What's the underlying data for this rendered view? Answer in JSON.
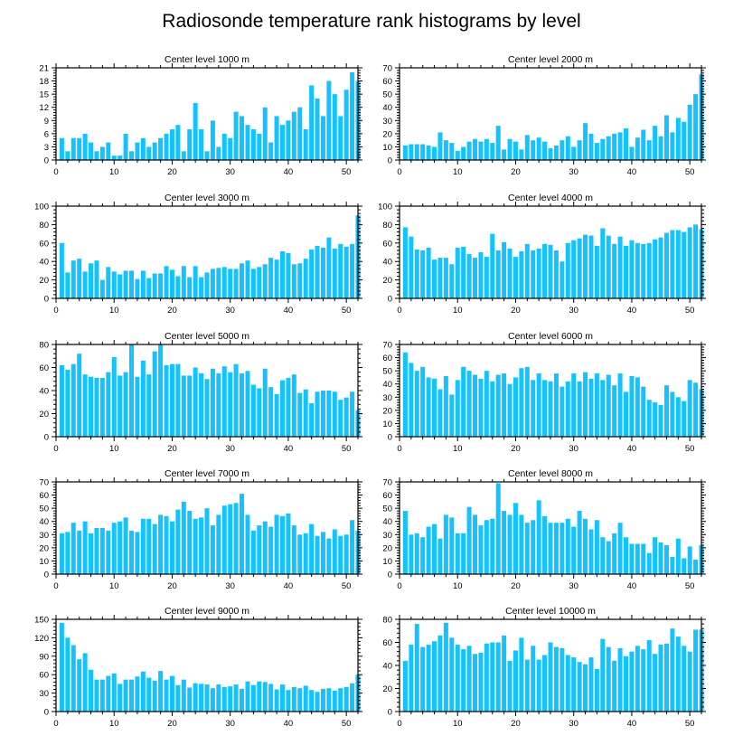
{
  "colors": {
    "bar": "#14c2ff",
    "frame": "#000000"
  },
  "figure": {
    "title": "Radiosonde temperature rank histograms by level"
  },
  "chart_data": [
    {
      "type": "bar",
      "title": "Center level 1000 m",
      "xlim": [
        0,
        52
      ],
      "ylim": [
        0,
        21
      ],
      "xticks": [
        0,
        10,
        20,
        30,
        40,
        50
      ],
      "yticks": [
        0,
        3,
        6,
        9,
        12,
        15,
        18,
        21
      ],
      "values": [
        5,
        2,
        5,
        5,
        6,
        4,
        2,
        3,
        4,
        1,
        1,
        6,
        2,
        4,
        5,
        3,
        4,
        5,
        6,
        7,
        8,
        2,
        7,
        13,
        7,
        2,
        9,
        3,
        6,
        5,
        11,
        10,
        8,
        7,
        6,
        12,
        4,
        10,
        8,
        9,
        11,
        12,
        7,
        17,
        14,
        10,
        18,
        15,
        10,
        16,
        20,
        18
      ]
    },
    {
      "type": "bar",
      "title": "Center level 2000 m",
      "xlim": [
        0,
        52
      ],
      "ylim": [
        0,
        70
      ],
      "xticks": [
        0,
        10,
        20,
        30,
        40,
        50
      ],
      "yticks": [
        0,
        10,
        20,
        30,
        40,
        50,
        60,
        70
      ],
      "values": [
        11,
        12,
        12,
        12,
        11,
        10,
        21,
        15,
        13,
        7,
        10,
        14,
        16,
        14,
        16,
        13,
        26,
        8,
        16,
        14,
        8,
        19,
        15,
        17,
        14,
        9,
        11,
        15,
        18,
        10,
        15,
        28,
        20,
        13,
        16,
        18,
        20,
        21,
        24,
        10,
        17,
        23,
        15,
        26,
        18,
        34,
        21,
        32,
        29,
        42,
        50,
        65
      ]
    },
    {
      "type": "bar",
      "title": "Center level 3000 m",
      "xlim": [
        0,
        52
      ],
      "ylim": [
        0,
        100
      ],
      "xticks": [
        0,
        10,
        20,
        30,
        40,
        50
      ],
      "yticks": [
        0,
        20,
        40,
        60,
        80,
        100
      ],
      "values": [
        60,
        28,
        41,
        43,
        29,
        38,
        41,
        20,
        34,
        29,
        26,
        30,
        30,
        21,
        30,
        22,
        27,
        27,
        35,
        31,
        24,
        35,
        23,
        35,
        23,
        28,
        32,
        33,
        34,
        32,
        32,
        38,
        41,
        32,
        34,
        37,
        44,
        42,
        51,
        49,
        37,
        38,
        43,
        53,
        57,
        55,
        66,
        54,
        59,
        56,
        59,
        90
      ]
    },
    {
      "type": "bar",
      "title": "Center level 4000 m",
      "xlim": [
        0,
        52
      ],
      "ylim": [
        0,
        100
      ],
      "xticks": [
        0,
        10,
        20,
        30,
        40,
        50
      ],
      "yticks": [
        0,
        20,
        40,
        60,
        80,
        100
      ],
      "values": [
        77,
        67,
        53,
        52,
        55,
        42,
        44,
        44,
        37,
        55,
        56,
        48,
        44,
        50,
        45,
        70,
        52,
        61,
        54,
        45,
        51,
        59,
        52,
        54,
        59,
        58,
        52,
        40,
        60,
        63,
        65,
        69,
        68,
        57,
        76,
        68,
        59,
        67,
        57,
        63,
        60,
        59,
        60,
        64,
        66,
        71,
        74,
        74,
        72,
        77,
        80,
        75
      ]
    },
    {
      "type": "bar",
      "title": "Center level 5000 m",
      "xlim": [
        0,
        52
      ],
      "ylim": [
        0,
        80
      ],
      "xticks": [
        0,
        10,
        20,
        30,
        40,
        50
      ],
      "yticks": [
        0,
        20,
        40,
        60,
        80
      ],
      "values": [
        62,
        58,
        63,
        72,
        54,
        52,
        51,
        51,
        56,
        69,
        53,
        56,
        80,
        52,
        66,
        54,
        74,
        80,
        62,
        63,
        63,
        53,
        53,
        60,
        55,
        50,
        59,
        55,
        61,
        56,
        63,
        55,
        57,
        45,
        42,
        59,
        43,
        37,
        49,
        51,
        54,
        38,
        41,
        29,
        39,
        40,
        40,
        39,
        32,
        34,
        39,
        23
      ]
    },
    {
      "type": "bar",
      "title": "Center level 6000 m",
      "xlim": [
        0,
        52
      ],
      "ylim": [
        0,
        70
      ],
      "xticks": [
        0,
        10,
        20,
        30,
        40,
        50
      ],
      "yticks": [
        0,
        10,
        20,
        30,
        40,
        50,
        60,
        70
      ],
      "values": [
        64,
        56,
        50,
        53,
        45,
        44,
        36,
        46,
        32,
        43,
        53,
        50,
        47,
        44,
        50,
        42,
        47,
        48,
        40,
        45,
        52,
        53,
        43,
        48,
        43,
        42,
        48,
        38,
        42,
        48,
        42,
        49,
        44,
        48,
        43,
        47,
        39,
        48,
        34,
        46,
        45,
        38,
        28,
        26,
        24,
        39,
        34,
        30,
        27,
        43,
        41,
        36
      ]
    },
    {
      "type": "bar",
      "title": "Center level 7000 m",
      "xlim": [
        0,
        52
      ],
      "ylim": [
        0,
        70
      ],
      "xticks": [
        0,
        10,
        20,
        30,
        40,
        50
      ],
      "yticks": [
        0,
        10,
        20,
        30,
        40,
        50,
        60,
        70
      ],
      "values": [
        31,
        32,
        39,
        33,
        40,
        31,
        35,
        35,
        33,
        39,
        40,
        43,
        33,
        32,
        42,
        42,
        38,
        45,
        44,
        40,
        49,
        55,
        48,
        42,
        43,
        50,
        37,
        45,
        52,
        53,
        54,
        61,
        45,
        33,
        37,
        40,
        36,
        45,
        44,
        46,
        37,
        30,
        31,
        38,
        29,
        32,
        27,
        34,
        29,
        30,
        41,
        33
      ]
    },
    {
      "type": "bar",
      "title": "Center level 8000 m",
      "xlim": [
        0,
        52
      ],
      "ylim": [
        0,
        70
      ],
      "xticks": [
        0,
        10,
        20,
        30,
        40,
        50
      ],
      "yticks": [
        0,
        10,
        20,
        30,
        40,
        50,
        60,
        70
      ],
      "values": [
        48,
        30,
        31,
        28,
        36,
        38,
        27,
        45,
        43,
        31,
        31,
        51,
        45,
        37,
        41,
        42,
        69,
        48,
        45,
        54,
        45,
        39,
        41,
        56,
        44,
        39,
        39,
        39,
        42,
        36,
        48,
        42,
        34,
        41,
        28,
        25,
        31,
        39,
        28,
        23,
        23,
        23,
        16,
        28,
        24,
        22,
        13,
        27,
        12,
        21,
        11,
        22
      ]
    },
    {
      "type": "bar",
      "title": "Center level 9000 m",
      "xlim": [
        0,
        52
      ],
      "ylim": [
        0,
        150
      ],
      "xticks": [
        0,
        10,
        20,
        30,
        40,
        50
      ],
      "yticks": [
        0,
        30,
        60,
        90,
        120,
        150
      ],
      "values": [
        144,
        120,
        108,
        85,
        95,
        68,
        52,
        52,
        58,
        62,
        45,
        52,
        52,
        57,
        65,
        55,
        50,
        66,
        52,
        58,
        43,
        52,
        39,
        46,
        45,
        44,
        38,
        44,
        40,
        41,
        44,
        37,
        49,
        43,
        49,
        48,
        45,
        36,
        44,
        35,
        40,
        38,
        42,
        35,
        32,
        37,
        38,
        34,
        38,
        40,
        46,
        60
      ]
    },
    {
      "type": "bar",
      "title": "Center level 10000 m",
      "xlim": [
        0,
        52
      ],
      "ylim": [
        0,
        80
      ],
      "xticks": [
        0,
        10,
        20,
        30,
        40,
        50
      ],
      "yticks": [
        0,
        20,
        40,
        60,
        80
      ],
      "values": [
        44,
        58,
        76,
        56,
        58,
        61,
        66,
        77,
        64,
        58,
        54,
        57,
        50,
        51,
        59,
        60,
        60,
        66,
        44,
        53,
        64,
        45,
        57,
        45,
        49,
        60,
        56,
        55,
        49,
        47,
        43,
        41,
        47,
        37,
        63,
        56,
        44,
        55,
        48,
        52,
        57,
        54,
        62,
        50,
        58,
        59,
        72,
        65,
        57,
        52,
        71,
        71
      ]
    }
  ]
}
